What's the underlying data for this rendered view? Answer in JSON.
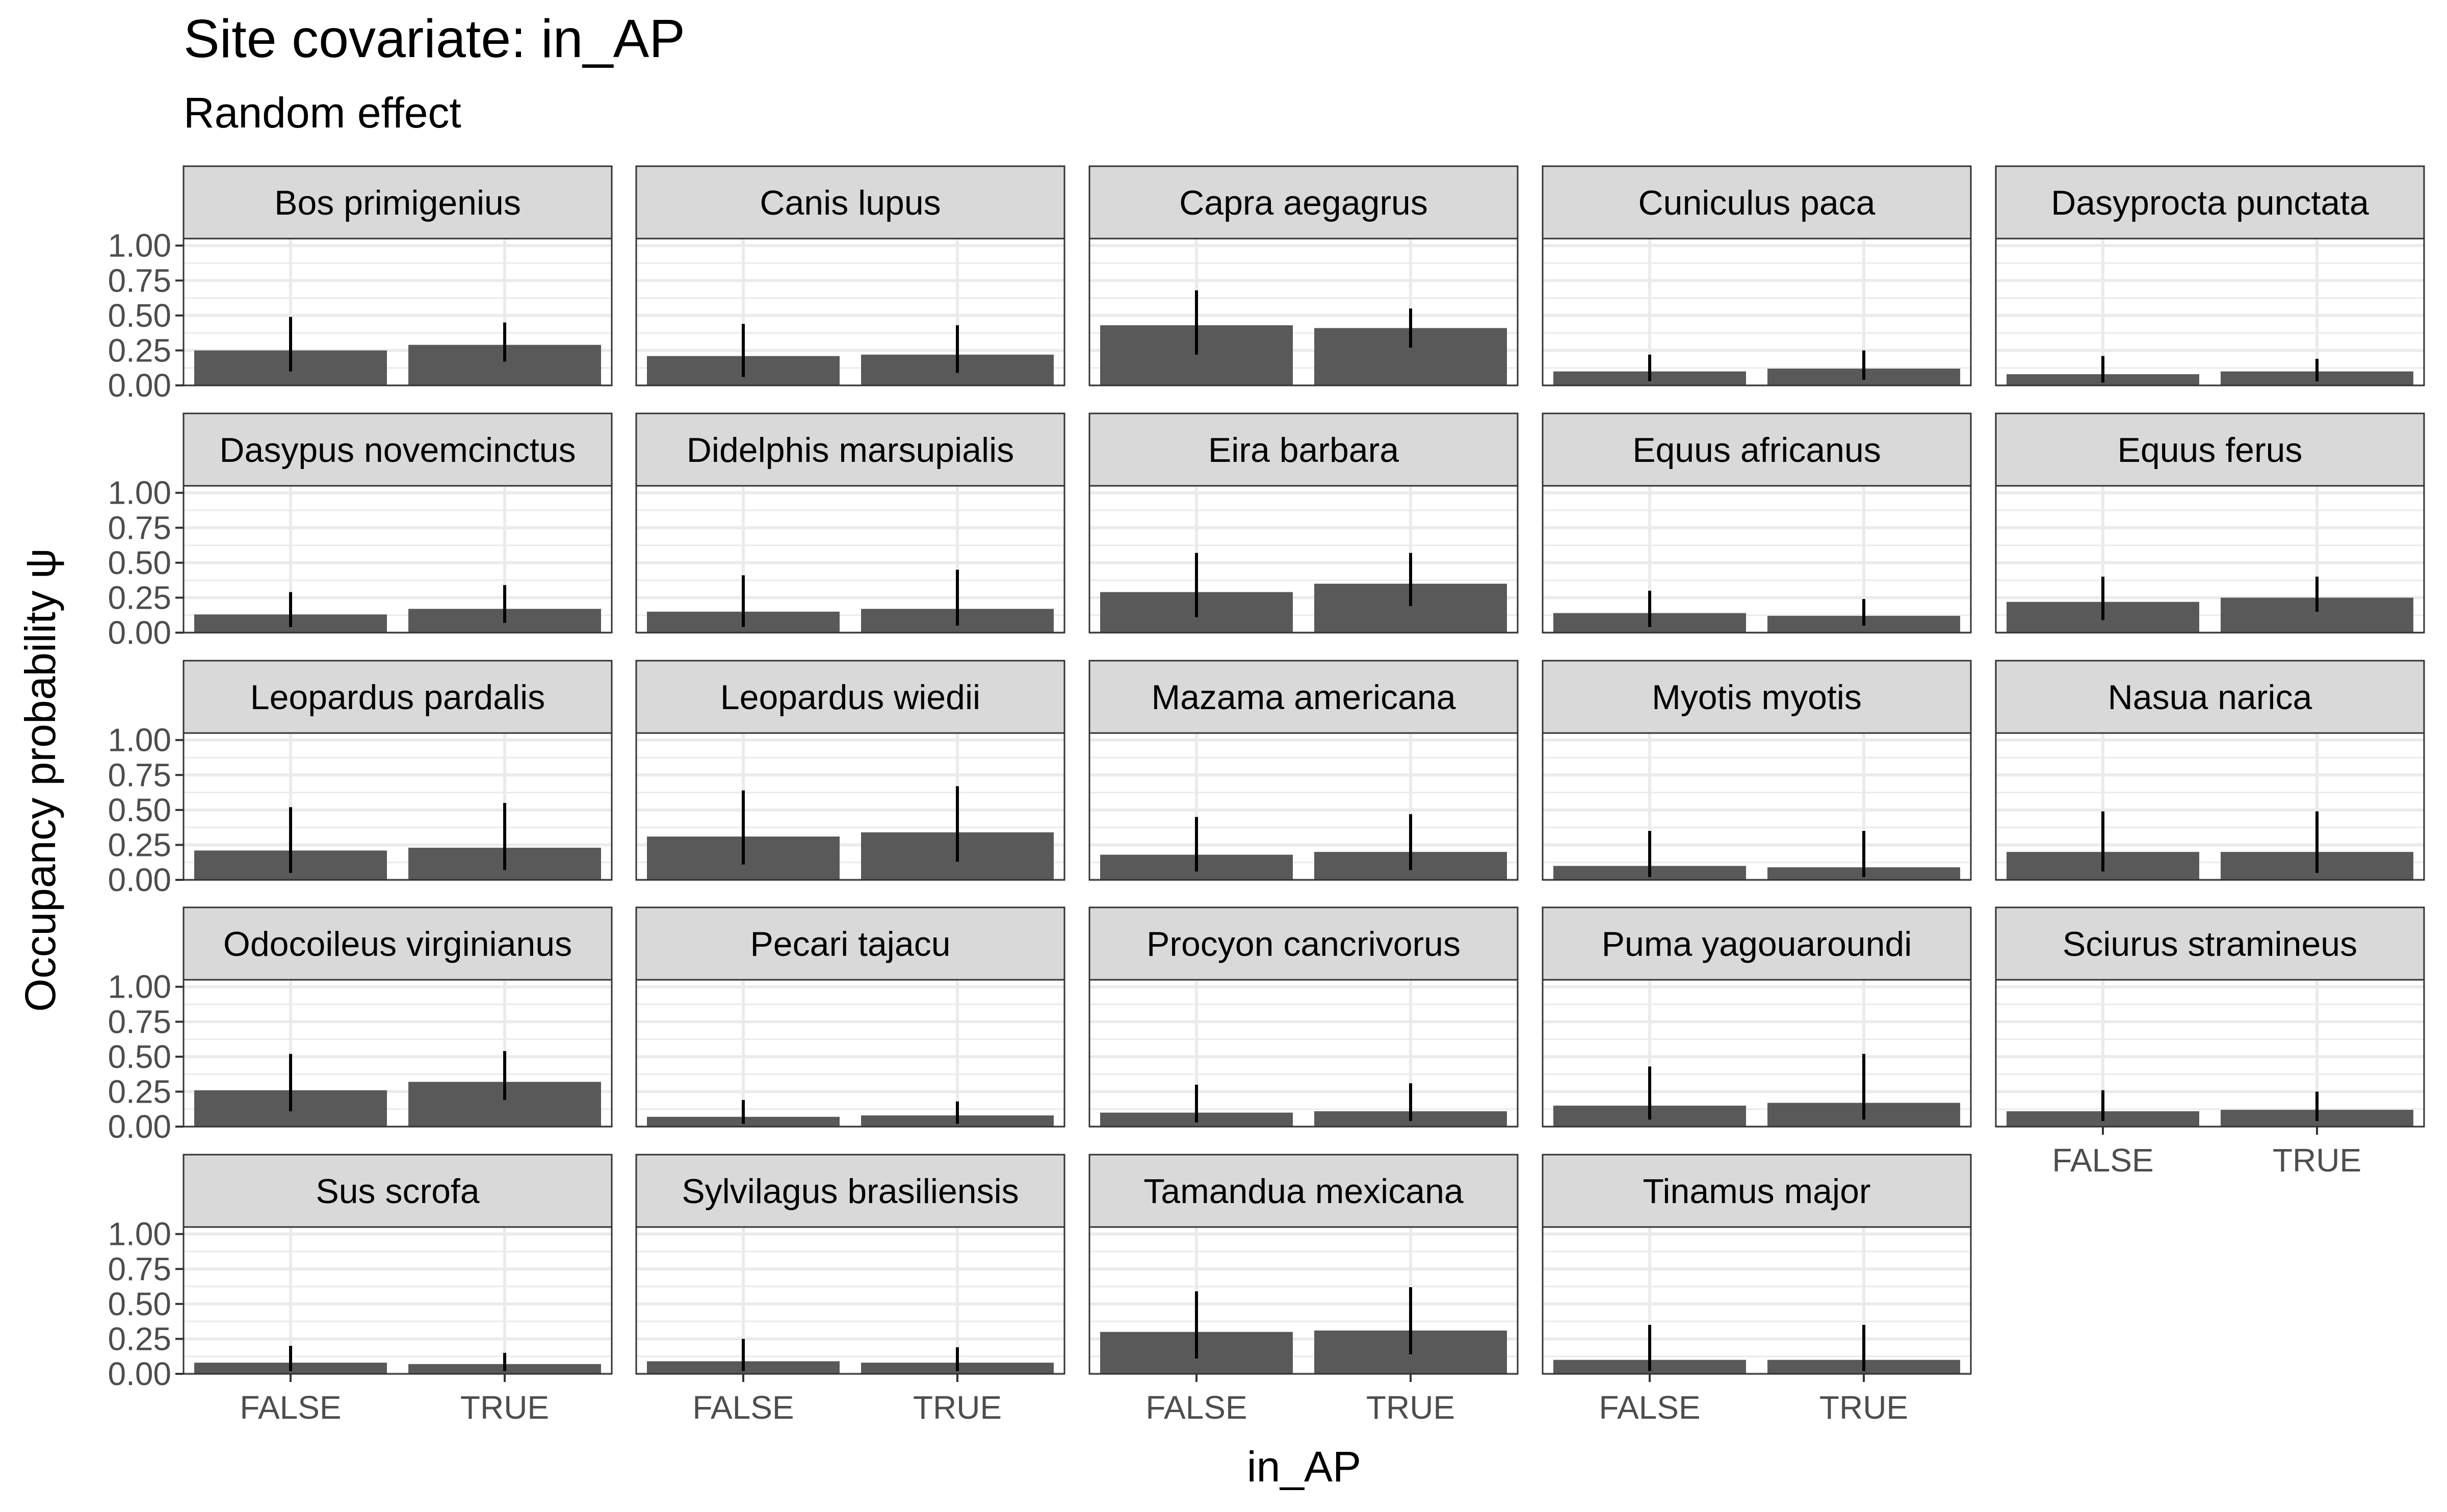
{
  "chart_data": {
    "type": "bar",
    "title": "Site covariate: in_AP",
    "subtitle": "Random effect",
    "xlabel": "in_AP",
    "ylabel": "Occupancy probability  ψ",
    "categories": [
      "FALSE",
      "TRUE"
    ],
    "yticks": [
      "0.00",
      "0.25",
      "0.50",
      "0.75",
      "1.00"
    ],
    "ylim": [
      0,
      1.05
    ],
    "grid": true,
    "error_bars": true,
    "colors": {
      "bar": "#595959",
      "error_bar": "#000000",
      "strip_fill": "#d9d9d9",
      "panel_border": "#333333",
      "grid": "#ebebeb",
      "text": "#000000",
      "tick_text": "#4d4d4d"
    },
    "panels": [
      {
        "name": "Bos primigenius",
        "values": [
          0.25,
          0.29
        ],
        "lower": [
          0.1,
          0.17
        ],
        "upper": [
          0.49,
          0.45
        ]
      },
      {
        "name": "Canis lupus",
        "values": [
          0.21,
          0.22
        ],
        "lower": [
          0.06,
          0.09
        ],
        "upper": [
          0.44,
          0.43
        ]
      },
      {
        "name": "Capra aegagrus",
        "values": [
          0.43,
          0.41
        ],
        "lower": [
          0.22,
          0.27
        ],
        "upper": [
          0.68,
          0.55
        ]
      },
      {
        "name": "Cuniculus paca",
        "values": [
          0.1,
          0.12
        ],
        "lower": [
          0.03,
          0.04
        ],
        "upper": [
          0.22,
          0.25
        ]
      },
      {
        "name": "Dasyprocta punctata",
        "values": [
          0.08,
          0.1
        ],
        "lower": [
          0.02,
          0.03
        ],
        "upper": [
          0.21,
          0.19
        ]
      },
      {
        "name": "Dasypus novemcinctus",
        "values": [
          0.13,
          0.17
        ],
        "lower": [
          0.04,
          0.07
        ],
        "upper": [
          0.29,
          0.34
        ]
      },
      {
        "name": "Didelphis marsupialis",
        "values": [
          0.15,
          0.17
        ],
        "lower": [
          0.04,
          0.05
        ],
        "upper": [
          0.41,
          0.45
        ]
      },
      {
        "name": "Eira barbara",
        "values": [
          0.29,
          0.35
        ],
        "lower": [
          0.11,
          0.19
        ],
        "upper": [
          0.57,
          0.57
        ]
      },
      {
        "name": "Equus africanus",
        "values": [
          0.14,
          0.12
        ],
        "lower": [
          0.04,
          0.05
        ],
        "upper": [
          0.3,
          0.24
        ]
      },
      {
        "name": "Equus ferus",
        "values": [
          0.22,
          0.25
        ],
        "lower": [
          0.09,
          0.15
        ],
        "upper": [
          0.4,
          0.4
        ]
      },
      {
        "name": "Leopardus pardalis",
        "values": [
          0.21,
          0.23
        ],
        "lower": [
          0.05,
          0.07
        ],
        "upper": [
          0.52,
          0.55
        ]
      },
      {
        "name": "Leopardus wiedii",
        "values": [
          0.31,
          0.34
        ],
        "lower": [
          0.11,
          0.13
        ],
        "upper": [
          0.64,
          0.67
        ]
      },
      {
        "name": "Mazama americana",
        "values": [
          0.18,
          0.2
        ],
        "lower": [
          0.06,
          0.07
        ],
        "upper": [
          0.45,
          0.47
        ]
      },
      {
        "name": "Myotis myotis",
        "values": [
          0.1,
          0.09
        ],
        "lower": [
          0.02,
          0.02
        ],
        "upper": [
          0.35,
          0.35
        ]
      },
      {
        "name": "Nasua narica",
        "values": [
          0.2,
          0.2
        ],
        "lower": [
          0.06,
          0.05
        ],
        "upper": [
          0.49,
          0.49
        ]
      },
      {
        "name": "Odocoileus virginianus",
        "values": [
          0.26,
          0.32
        ],
        "lower": [
          0.11,
          0.19
        ],
        "upper": [
          0.52,
          0.54
        ]
      },
      {
        "name": "Pecari tajacu",
        "values": [
          0.07,
          0.08
        ],
        "lower": [
          0.02,
          0.02
        ],
        "upper": [
          0.19,
          0.18
        ]
      },
      {
        "name": "Procyon cancrivorus",
        "values": [
          0.1,
          0.11
        ],
        "lower": [
          0.03,
          0.04
        ],
        "upper": [
          0.3,
          0.31
        ]
      },
      {
        "name": "Puma yagouaroundi",
        "values": [
          0.15,
          0.17
        ],
        "lower": [
          0.05,
          0.05
        ],
        "upper": [
          0.43,
          0.52
        ]
      },
      {
        "name": "Sciurus stramineus",
        "values": [
          0.11,
          0.12
        ],
        "lower": [
          0.04,
          0.04
        ],
        "upper": [
          0.26,
          0.25
        ]
      },
      {
        "name": "Sus scrofa",
        "values": [
          0.08,
          0.07
        ],
        "lower": [
          0.02,
          0.02
        ],
        "upper": [
          0.2,
          0.15
        ]
      },
      {
        "name": "Sylvilagus brasiliensis",
        "values": [
          0.09,
          0.08
        ],
        "lower": [
          0.02,
          0.02
        ],
        "upper": [
          0.25,
          0.19
        ]
      },
      {
        "name": "Tamandua mexicana",
        "values": [
          0.3,
          0.31
        ],
        "lower": [
          0.11,
          0.14
        ],
        "upper": [
          0.59,
          0.62
        ]
      },
      {
        "name": "Tinamus major",
        "values": [
          0.1,
          0.1
        ],
        "lower": [
          0.02,
          0.02
        ],
        "upper": [
          0.35,
          0.35
        ]
      }
    ]
  }
}
